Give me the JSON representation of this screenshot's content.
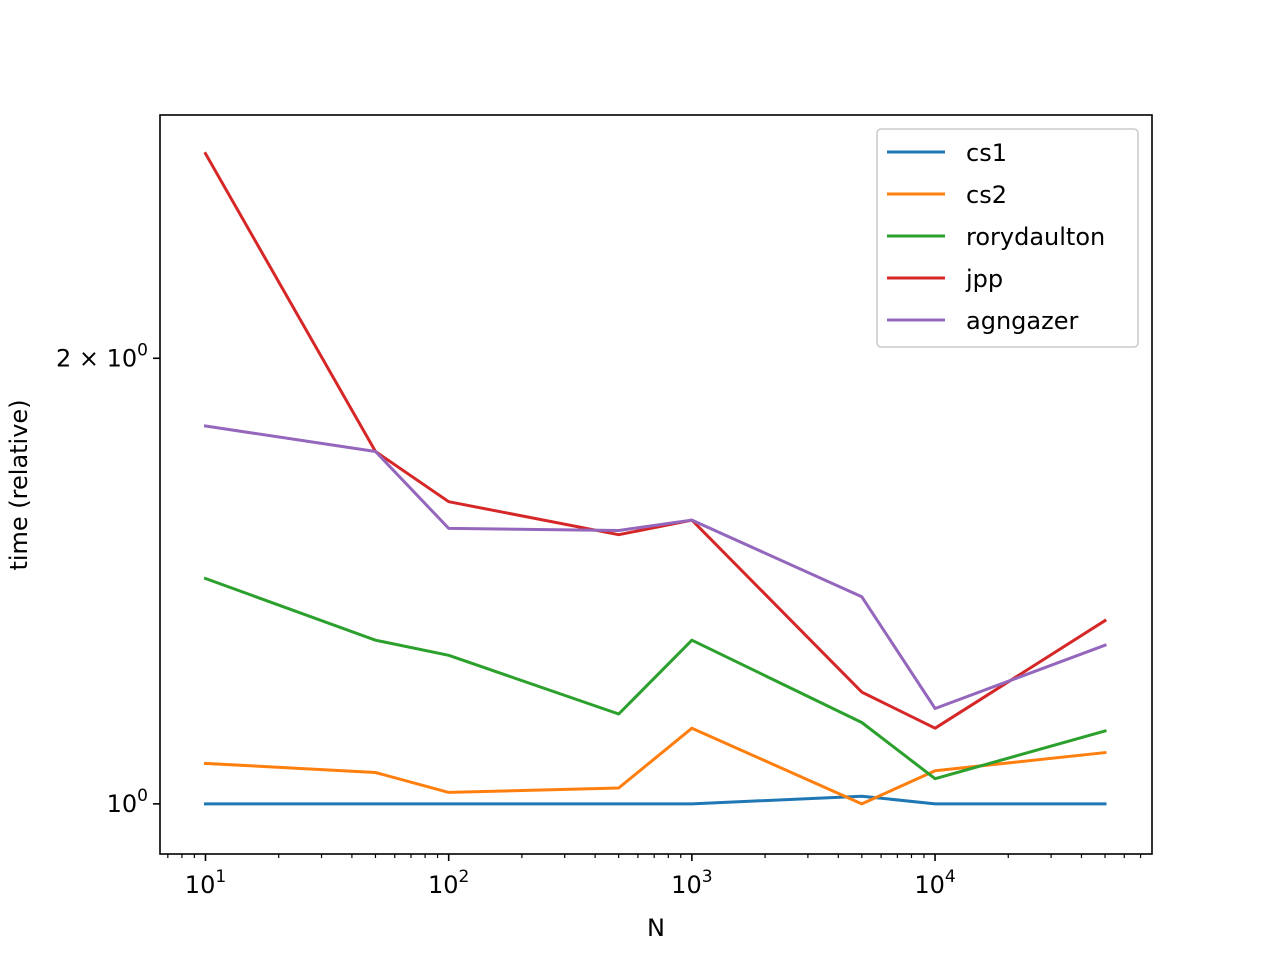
{
  "chart_data": {
    "type": "line",
    "title": "",
    "xlabel": "N",
    "ylabel": "time (relative)",
    "xscale": "log",
    "yscale": "log",
    "xlim": [
      6.5,
      78000
    ],
    "ylim": [
      0.925,
      2.92
    ],
    "grid": false,
    "legend_position": "top-right",
    "x_ticks": [
      {
        "value": 10,
        "base": "10",
        "exp": "1"
      },
      {
        "value": 100,
        "base": "10",
        "exp": "2"
      },
      {
        "value": 1000,
        "base": "10",
        "exp": "3"
      },
      {
        "value": 10000,
        "base": "10",
        "exp": "4"
      }
    ],
    "y_ticks": [
      {
        "value": 1,
        "mantissa": "",
        "base": "10",
        "exp": "0"
      },
      {
        "value": 2,
        "mantissa": "2 × ",
        "base": "10",
        "exp": "0"
      }
    ],
    "x": [
      10,
      50,
      100,
      500,
      1000,
      5000,
      10000,
      50000
    ],
    "series": [
      {
        "name": "cs1",
        "color": "#1f77b4",
        "values": [
          1.0,
          1.0,
          1.0,
          1.0,
          1.0,
          1.012,
          1.0,
          1.0
        ]
      },
      {
        "name": "cs2",
        "color": "#ff7f0e",
        "values": [
          1.065,
          1.05,
          1.018,
          1.025,
          1.125,
          1.0,
          1.053,
          1.083
        ]
      },
      {
        "name": "rorydaulton",
        "color": "#2ca02c",
        "values": [
          1.42,
          1.29,
          1.26,
          1.15,
          1.29,
          1.135,
          1.04,
          1.12
        ]
      },
      {
        "name": "jpp",
        "color": "#d62728",
        "values": [
          2.75,
          1.73,
          1.6,
          1.52,
          1.555,
          1.19,
          1.125,
          1.33
        ]
      },
      {
        "name": "agngazer",
        "color": "#9467bd",
        "values": [
          1.8,
          1.73,
          1.535,
          1.53,
          1.555,
          1.38,
          1.16,
          1.28
        ]
      }
    ]
  }
}
